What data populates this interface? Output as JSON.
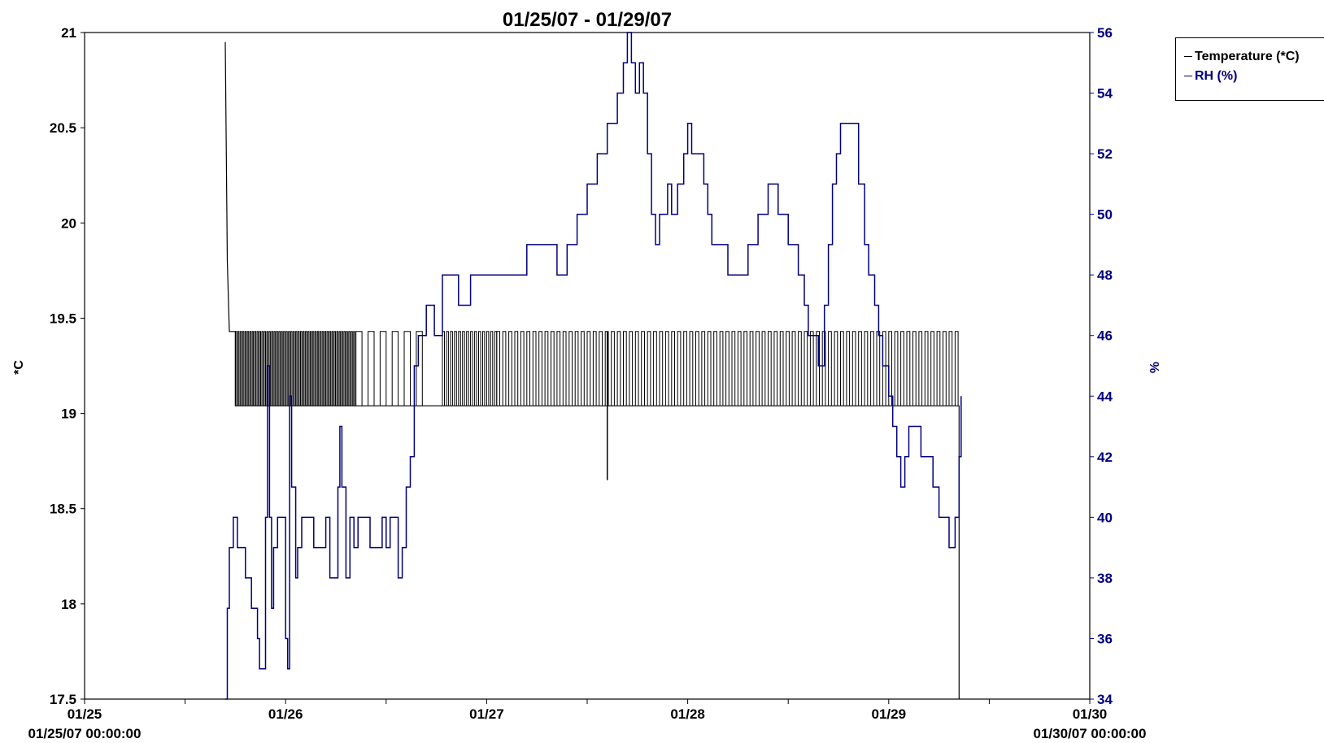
{
  "chart_data": {
    "type": "line",
    "title": "01/25/07 - 01/29/07",
    "ylabel_left": "*C",
    "ylabel_right": "%",
    "x_axis": {
      "range_days": [
        0,
        5
      ],
      "ticks": [
        {
          "day": 0,
          "label": "01/25",
          "sub": "01/25/07 00:00:00"
        },
        {
          "day": 1,
          "label": "01/26",
          "sub": ""
        },
        {
          "day": 2,
          "label": "01/27",
          "sub": ""
        },
        {
          "day": 3,
          "label": "01/28",
          "sub": ""
        },
        {
          "day": 4,
          "label": "01/29",
          "sub": ""
        },
        {
          "day": 5,
          "label": "01/30",
          "sub": "01/30/07 00:00:00"
        }
      ]
    },
    "y_left": {
      "min": 17.5,
      "max": 21,
      "ticks": [
        17.5,
        18,
        18.5,
        19,
        19.5,
        20,
        20.5,
        21
      ],
      "tick_labels": [
        "17.5",
        "18",
        "18.5",
        "19",
        "19.5",
        "20",
        "20.5",
        "21"
      ]
    },
    "y_right": {
      "min": 34,
      "max": 56,
      "ticks": [
        34,
        36,
        38,
        40,
        42,
        44,
        46,
        48,
        50,
        52,
        54,
        56
      ]
    },
    "grid": false,
    "legend_position": "top-right",
    "series": [
      {
        "name": "Temperature (*C)",
        "axis": "left",
        "color": "#000000",
        "step_points": [
          [
            0.7,
            20.95
          ],
          [
            0.71,
            19.8
          ],
          [
            0.72,
            19.43
          ],
          [
            0.75,
            19.43
          ],
          [
            0.75,
            19.04
          ],
          [
            2.1,
            19.04
          ],
          [
            4.35,
            19.04
          ],
          [
            4.35,
            17.5
          ]
        ],
        "oscillation_segments": [
          {
            "from": 0.75,
            "to": 1.35,
            "low": 19.04,
            "high": 19.43,
            "period": 0.012
          },
          {
            "from": 1.35,
            "to": 1.7,
            "low": 19.04,
            "high": 19.43,
            "period": 0.06
          },
          {
            "from": 1.78,
            "to": 2.05,
            "low": 19.04,
            "high": 19.43,
            "period": 0.02
          },
          {
            "from": 2.05,
            "to": 4.35,
            "low": 19.04,
            "high": 19.43,
            "period": 0.03
          }
        ],
        "dips": [
          [
            2.6,
            18.65
          ]
        ]
      },
      {
        "name": "RH (%)",
        "axis": "right",
        "color": "#000080",
        "points": [
          [
            0.7,
            34
          ],
          [
            0.71,
            37
          ],
          [
            0.72,
            39
          ],
          [
            0.74,
            40
          ],
          [
            0.76,
            39
          ],
          [
            0.79,
            39
          ],
          [
            0.8,
            38
          ],
          [
            0.82,
            38
          ],
          [
            0.83,
            37
          ],
          [
            0.85,
            37
          ],
          [
            0.86,
            36
          ],
          [
            0.87,
            35
          ],
          [
            0.89,
            35
          ],
          [
            0.9,
            40
          ],
          [
            0.91,
            45
          ],
          [
            0.92,
            40
          ],
          [
            0.93,
            37
          ],
          [
            0.94,
            39
          ],
          [
            0.96,
            40
          ],
          [
            0.98,
            40
          ],
          [
            1.0,
            36
          ],
          [
            1.01,
            35
          ],
          [
            1.02,
            44
          ],
          [
            1.03,
            41
          ],
          [
            1.05,
            38
          ],
          [
            1.06,
            39
          ],
          [
            1.08,
            40
          ],
          [
            1.13,
            40
          ],
          [
            1.14,
            39
          ],
          [
            1.18,
            39
          ],
          [
            1.2,
            40
          ],
          [
            1.22,
            38
          ],
          [
            1.24,
            38
          ],
          [
            1.26,
            41
          ],
          [
            1.27,
            43
          ],
          [
            1.28,
            41
          ],
          [
            1.3,
            38
          ],
          [
            1.32,
            40
          ],
          [
            1.34,
            39
          ],
          [
            1.36,
            40
          ],
          [
            1.4,
            40
          ],
          [
            1.42,
            39
          ],
          [
            1.46,
            39
          ],
          [
            1.48,
            40
          ],
          [
            1.5,
            39
          ],
          [
            1.52,
            40
          ],
          [
            1.54,
            40
          ],
          [
            1.56,
            38
          ],
          [
            1.58,
            39
          ],
          [
            1.6,
            41
          ],
          [
            1.62,
            42
          ],
          [
            1.64,
            45
          ],
          [
            1.66,
            46
          ],
          [
            1.7,
            47
          ],
          [
            1.74,
            46
          ],
          [
            1.78,
            48
          ],
          [
            1.84,
            48
          ],
          [
            1.86,
            47
          ],
          [
            1.92,
            48
          ],
          [
            2.0,
            48
          ],
          [
            2.2,
            49
          ],
          [
            2.35,
            48
          ],
          [
            2.4,
            49
          ],
          [
            2.45,
            50
          ],
          [
            2.5,
            51
          ],
          [
            2.55,
            52
          ],
          [
            2.6,
            53
          ],
          [
            2.65,
            54
          ],
          [
            2.68,
            55
          ],
          [
            2.7,
            56
          ],
          [
            2.72,
            55
          ],
          [
            2.74,
            54
          ],
          [
            2.76,
            55
          ],
          [
            2.78,
            54
          ],
          [
            2.8,
            52
          ],
          [
            2.82,
            50
          ],
          [
            2.84,
            49
          ],
          [
            2.86,
            50
          ],
          [
            2.9,
            51
          ],
          [
            2.92,
            50
          ],
          [
            2.95,
            51
          ],
          [
            2.98,
            52
          ],
          [
            3.0,
            53
          ],
          [
            3.02,
            52
          ],
          [
            3.05,
            52
          ],
          [
            3.08,
            51
          ],
          [
            3.1,
            50
          ],
          [
            3.12,
            49
          ],
          [
            3.18,
            49
          ],
          [
            3.2,
            48
          ],
          [
            3.28,
            48
          ],
          [
            3.3,
            49
          ],
          [
            3.35,
            50
          ],
          [
            3.4,
            51
          ],
          [
            3.45,
            50
          ],
          [
            3.48,
            50
          ],
          [
            3.5,
            49
          ],
          [
            3.55,
            48
          ],
          [
            3.58,
            47
          ],
          [
            3.6,
            46
          ],
          [
            3.65,
            45
          ],
          [
            3.68,
            47
          ],
          [
            3.7,
            49
          ],
          [
            3.72,
            51
          ],
          [
            3.74,
            52
          ],
          [
            3.76,
            53
          ],
          [
            3.82,
            53
          ],
          [
            3.85,
            51
          ],
          [
            3.88,
            49
          ],
          [
            3.9,
            48
          ],
          [
            3.93,
            47
          ],
          [
            3.95,
            46
          ],
          [
            3.97,
            45
          ],
          [
            4.0,
            44
          ],
          [
            4.02,
            43
          ],
          [
            4.04,
            42
          ],
          [
            4.06,
            41
          ],
          [
            4.08,
            42
          ],
          [
            4.1,
            43
          ],
          [
            4.14,
            43
          ],
          [
            4.16,
            42
          ],
          [
            4.2,
            42
          ],
          [
            4.22,
            41
          ],
          [
            4.25,
            40
          ],
          [
            4.28,
            40
          ],
          [
            4.3,
            39
          ],
          [
            4.33,
            40
          ],
          [
            4.35,
            42
          ],
          [
            4.36,
            44
          ]
        ]
      }
    ]
  }
}
